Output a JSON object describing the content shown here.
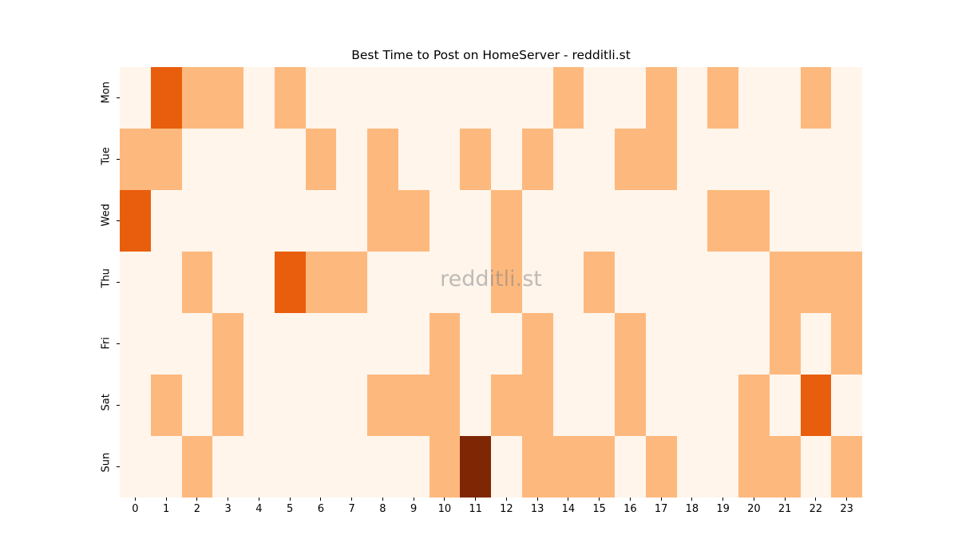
{
  "chart_data": {
    "type": "heatmap",
    "title": "Best Time to Post on HomeServer - redditli.st",
    "xlabel": "",
    "ylabel": "",
    "watermark": "redditli.st",
    "colormap": "Oranges",
    "color_scale": [
      "#fff5eb",
      "#fdb97d",
      "#e95e0d",
      "#7f2704"
    ],
    "x_categories": [
      "0",
      "1",
      "2",
      "3",
      "4",
      "5",
      "6",
      "7",
      "8",
      "9",
      "10",
      "11",
      "12",
      "13",
      "14",
      "15",
      "16",
      "17",
      "18",
      "19",
      "20",
      "21",
      "22",
      "23"
    ],
    "y_categories": [
      "Mon",
      "Tue",
      "Wed",
      "Thu",
      "Fri",
      "Sat",
      "Sun"
    ],
    "values": [
      [
        0,
        2,
        1,
        1,
        0,
        1,
        0,
        0,
        0,
        0,
        0,
        0,
        0,
        0,
        1,
        0,
        0,
        1,
        0,
        1,
        0,
        0,
        1,
        0
      ],
      [
        1,
        1,
        0,
        0,
        0,
        0,
        1,
        0,
        1,
        0,
        0,
        1,
        0,
        1,
        0,
        0,
        1,
        1,
        0,
        0,
        0,
        0,
        0,
        0
      ],
      [
        2,
        0,
        0,
        0,
        0,
        0,
        0,
        0,
        1,
        1,
        0,
        0,
        1,
        0,
        0,
        0,
        0,
        0,
        0,
        1,
        1,
        0,
        0,
        0
      ],
      [
        0,
        0,
        1,
        0,
        0,
        2,
        1,
        1,
        0,
        0,
        0,
        0,
        1,
        0,
        0,
        1,
        0,
        0,
        0,
        0,
        0,
        1,
        1,
        1
      ],
      [
        0,
        0,
        0,
        1,
        0,
        0,
        0,
        0,
        0,
        0,
        1,
        0,
        0,
        1,
        0,
        0,
        1,
        0,
        0,
        0,
        0,
        1,
        0,
        1
      ],
      [
        0,
        1,
        0,
        1,
        0,
        0,
        0,
        0,
        1,
        1,
        1,
        0,
        1,
        1,
        0,
        0,
        1,
        0,
        0,
        0,
        1,
        0,
        2,
        0
      ],
      [
        0,
        0,
        1,
        0,
        0,
        0,
        0,
        0,
        0,
        0,
        1,
        3,
        0,
        1,
        1,
        1,
        0,
        1,
        0,
        0,
        1,
        1,
        0,
        1
      ]
    ],
    "grid": false,
    "colorbar": false
  }
}
